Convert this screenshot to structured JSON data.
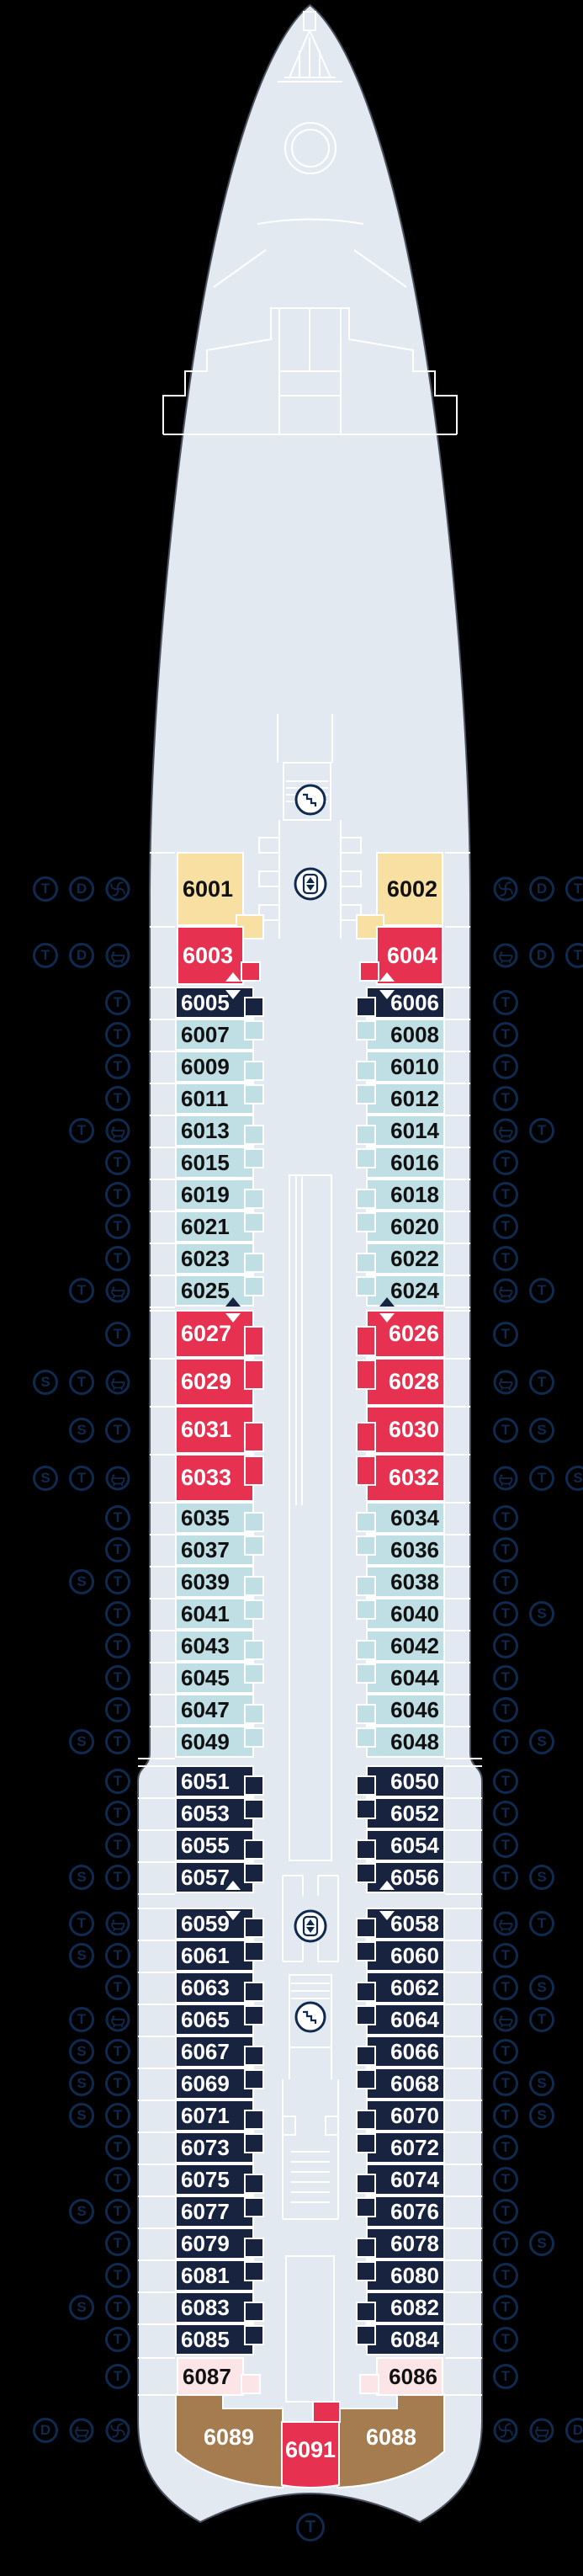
{
  "colors": {
    "hull": "#e3e9f1",
    "yellow": "#f8dfa2",
    "red": "#e73150",
    "navy": "#18243f",
    "lightblue": "#c0dfe5",
    "pink": "#fbe5e7",
    "brown": "#a57b50",
    "icon_navy": "#0f2a4e",
    "line_white": "#ffffff",
    "background": "#000000"
  },
  "icon_types": {
    "T": "circled-letter-T",
    "D": "circled-letter-D",
    "S": "circled-letter-S",
    "tub": "bathtub-icon",
    "fan": "whirlpool-icon"
  },
  "center_icons": [
    "stairs",
    "elevator",
    "elevator",
    "stairs"
  ],
  "stern_marker": "T",
  "rows": [
    {
      "category": "yellow",
      "left": {
        "number": "6001",
        "icons": [
          "T",
          "D",
          "fan"
        ]
      },
      "right": {
        "number": "6002",
        "icons": [
          "fan",
          "D",
          "T"
        ]
      }
    },
    {
      "category": "red-a",
      "left": {
        "number": "6003",
        "icons": [
          "T",
          "D",
          "tub"
        ]
      },
      "right": {
        "number": "6004",
        "icons": [
          "tub",
          "D",
          "T"
        ]
      },
      "arrow_bottom": "white",
      "gap_after": 2
    },
    {
      "category": "navy",
      "left": {
        "number": "6005",
        "icons": [
          "T"
        ]
      },
      "right": {
        "number": "6006",
        "icons": [
          "T"
        ]
      },
      "arrow_top": "white"
    },
    {
      "category": "lightblue",
      "left": {
        "number": "6007",
        "icons": [
          "T"
        ]
      },
      "right": {
        "number": "6008",
        "icons": [
          "T"
        ]
      }
    },
    {
      "category": "lightblue",
      "left": {
        "number": "6009",
        "icons": [
          "T"
        ]
      },
      "right": {
        "number": "6010",
        "icons": [
          "T"
        ]
      }
    },
    {
      "category": "lightblue",
      "left": {
        "number": "6011",
        "icons": [
          "T"
        ]
      },
      "right": {
        "number": "6012",
        "icons": [
          "T"
        ]
      }
    },
    {
      "category": "lightblue",
      "left": {
        "number": "6013",
        "icons": [
          "T",
          "tub"
        ]
      },
      "right": {
        "number": "6014",
        "icons": [
          "tub",
          "T"
        ]
      }
    },
    {
      "category": "lightblue",
      "left": {
        "number": "6015",
        "icons": [
          "T"
        ]
      },
      "right": {
        "number": "6016",
        "icons": [
          "T"
        ]
      }
    },
    {
      "category": "lightblue",
      "left": {
        "number": "6019",
        "icons": [
          "T"
        ]
      },
      "right": {
        "number": "6018",
        "icons": [
          "T"
        ]
      }
    },
    {
      "category": "lightblue",
      "left": {
        "number": "6021",
        "icons": [
          "T"
        ]
      },
      "right": {
        "number": "6020",
        "icons": [
          "T"
        ]
      }
    },
    {
      "category": "lightblue",
      "left": {
        "number": "6023",
        "icons": [
          "T"
        ]
      },
      "right": {
        "number": "6022",
        "icons": [
          "T"
        ]
      }
    },
    {
      "category": "lightblue",
      "left": {
        "number": "6025",
        "icons": [
          "T",
          "tub"
        ]
      },
      "right": {
        "number": "6024",
        "icons": [
          "tub",
          "T"
        ]
      },
      "arrow_bottom": "black",
      "gap_after": 4
    },
    {
      "category": "red-b",
      "left": {
        "number": "6027",
        "icons": [
          "T"
        ]
      },
      "right": {
        "number": "6026",
        "icons": [
          "T"
        ]
      },
      "arrow_top": "white"
    },
    {
      "category": "red-b",
      "left": {
        "number": "6029",
        "icons": [
          "S",
          "T",
          "tub"
        ]
      },
      "right": {
        "number": "6028",
        "icons": [
          "tub",
          "T"
        ]
      }
    },
    {
      "category": "red-b",
      "left": {
        "number": "6031",
        "icons": [
          "S",
          "T"
        ]
      },
      "right": {
        "number": "6030",
        "icons": [
          "T",
          "S"
        ]
      }
    },
    {
      "category": "red-b",
      "left": {
        "number": "6033",
        "icons": [
          "S",
          "T",
          "tub"
        ]
      },
      "right": {
        "number": "6032",
        "icons": [
          "tub",
          "T",
          "S"
        ]
      }
    },
    {
      "category": "lightblue",
      "left": {
        "number": "6035",
        "icons": [
          "T"
        ]
      },
      "right": {
        "number": "6034",
        "icons": [
          "T"
        ]
      }
    },
    {
      "category": "lightblue",
      "left": {
        "number": "6037",
        "icons": [
          "T"
        ]
      },
      "right": {
        "number": "6036",
        "icons": [
          "T"
        ]
      }
    },
    {
      "category": "lightblue",
      "left": {
        "number": "6039",
        "icons": [
          "S",
          "T"
        ]
      },
      "right": {
        "number": "6038",
        "icons": [
          "T"
        ]
      }
    },
    {
      "category": "lightblue",
      "left": {
        "number": "6041",
        "icons": [
          "T"
        ]
      },
      "right": {
        "number": "6040",
        "icons": [
          "T",
          "S"
        ]
      }
    },
    {
      "category": "lightblue",
      "left": {
        "number": "6043",
        "icons": [
          "T"
        ]
      },
      "right": {
        "number": "6042",
        "icons": [
          "T"
        ]
      }
    },
    {
      "category": "lightblue",
      "left": {
        "number": "6045",
        "icons": [
          "T"
        ]
      },
      "right": {
        "number": "6044",
        "icons": [
          "T"
        ]
      }
    },
    {
      "category": "lightblue",
      "left": {
        "number": "6047",
        "icons": [
          "T"
        ]
      },
      "right": {
        "number": "6046",
        "icons": [
          "T"
        ]
      }
    },
    {
      "category": "lightblue",
      "left": {
        "number": "6049",
        "icons": [
          "S",
          "T"
        ]
      },
      "right": {
        "number": "6048",
        "icons": [
          "T",
          "S"
        ]
      },
      "gap_after": 9
    },
    {
      "category": "navy",
      "left": {
        "number": "6051",
        "icons": [
          "T"
        ]
      },
      "right": {
        "number": "6050",
        "icons": [
          "T"
        ]
      }
    },
    {
      "category": "navy",
      "left": {
        "number": "6053",
        "icons": [
          "T"
        ]
      },
      "right": {
        "number": "6052",
        "icons": [
          "T"
        ]
      }
    },
    {
      "category": "navy",
      "left": {
        "number": "6055",
        "icons": [
          "T"
        ]
      },
      "right": {
        "number": "6054",
        "icons": [
          "T"
        ]
      }
    },
    {
      "category": "navy",
      "left": {
        "number": "6057",
        "icons": [
          "S",
          "T"
        ]
      },
      "right": {
        "number": "6056",
        "icons": [
          "T",
          "S"
        ]
      },
      "arrow_bottom": "white",
      "gap_after": 17
    },
    {
      "category": "navy",
      "left": {
        "number": "6059",
        "icons": [
          "T",
          "tub"
        ]
      },
      "right": {
        "number": "6058",
        "icons": [
          "tub",
          "T"
        ]
      },
      "arrow_top": "white"
    },
    {
      "category": "navy",
      "left": {
        "number": "6061",
        "icons": [
          "S",
          "T"
        ]
      },
      "right": {
        "number": "6060",
        "icons": [
          "T"
        ]
      }
    },
    {
      "category": "navy",
      "left": {
        "number": "6063",
        "icons": [
          "T"
        ]
      },
      "right": {
        "number": "6062",
        "icons": [
          "T",
          "S"
        ]
      }
    },
    {
      "category": "navy",
      "left": {
        "number": "6065",
        "icons": [
          "T",
          "tub"
        ]
      },
      "right": {
        "number": "6064",
        "icons": [
          "tub",
          "T"
        ]
      }
    },
    {
      "category": "navy",
      "left": {
        "number": "6067",
        "icons": [
          "S",
          "T"
        ]
      },
      "right": {
        "number": "6066",
        "icons": [
          "T"
        ]
      }
    },
    {
      "category": "navy",
      "left": {
        "number": "6069",
        "icons": [
          "S",
          "T"
        ]
      },
      "right": {
        "number": "6068",
        "icons": [
          "T",
          "S"
        ]
      }
    },
    {
      "category": "navy",
      "left": {
        "number": "6071",
        "icons": [
          "S",
          "T"
        ]
      },
      "right": {
        "number": "6070",
        "icons": [
          "T",
          "S"
        ]
      }
    },
    {
      "category": "navy",
      "left": {
        "number": "6073",
        "icons": [
          "T"
        ]
      },
      "right": {
        "number": "6072",
        "icons": [
          "T"
        ]
      }
    },
    {
      "category": "navy",
      "left": {
        "number": "6075",
        "icons": [
          "T"
        ]
      },
      "right": {
        "number": "6074",
        "icons": [
          "T"
        ]
      }
    },
    {
      "category": "navy",
      "left": {
        "number": "6077",
        "icons": [
          "S",
          "T"
        ]
      },
      "right": {
        "number": "6076",
        "icons": [
          "T"
        ]
      }
    },
    {
      "category": "navy",
      "left": {
        "number": "6079",
        "icons": [
          "T"
        ]
      },
      "right": {
        "number": "6078",
        "icons": [
          "T",
          "S"
        ]
      }
    },
    {
      "category": "navy",
      "left": {
        "number": "6081",
        "icons": [
          "T"
        ]
      },
      "right": {
        "number": "6080",
        "icons": [
          "T"
        ]
      }
    },
    {
      "category": "navy",
      "left": {
        "number": "6083",
        "icons": [
          "S",
          "T"
        ]
      },
      "right": {
        "number": "6082",
        "icons": [
          "T"
        ]
      }
    },
    {
      "category": "navy",
      "left": {
        "number": "6085",
        "icons": [
          "T"
        ]
      },
      "right": {
        "number": "6084",
        "icons": [
          "T"
        ]
      },
      "gap_after": 2
    },
    {
      "category": "pink",
      "left": {
        "number": "6087",
        "icons": [
          "T"
        ]
      },
      "right": {
        "number": "6086",
        "icons": [
          "T"
        ]
      }
    }
  ],
  "stern": {
    "left": {
      "number": "6089",
      "icons": [
        "D",
        "tub",
        "fan"
      ]
    },
    "center": {
      "number": "6091"
    },
    "right": {
      "number": "6088",
      "icons": [
        "fan",
        "tub",
        "D"
      ]
    }
  }
}
